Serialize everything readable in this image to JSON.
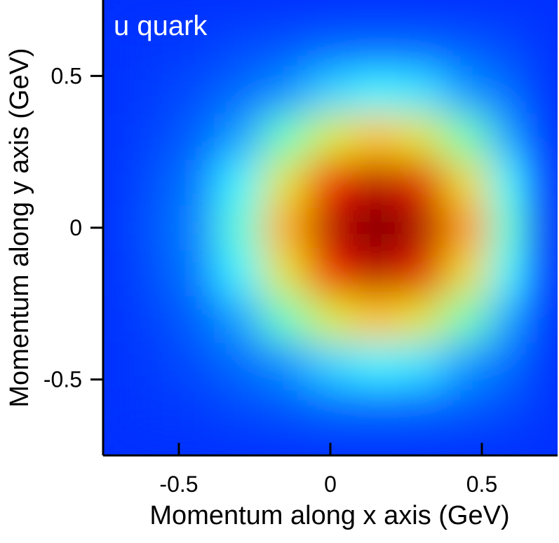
{
  "chart_data": {
    "type": "heatmap",
    "title": "u quark",
    "x_label": "Momentum along x axis (GeV)",
    "y_label": "Momentum along y axis (GeV)",
    "x": [
      -0.6,
      -0.45,
      -0.3,
      -0.15,
      0,
      0.15,
      0.3,
      0.45,
      0.6
    ],
    "y": [
      -0.6,
      -0.45,
      -0.3,
      -0.15,
      0,
      0.15,
      0.3,
      0.45,
      0.6
    ],
    "z": [
      [
        0.01,
        0.02,
        0.05,
        0.08,
        0.12,
        0.13,
        0.12,
        0.09,
        0.05
      ],
      [
        0.02,
        0.06,
        0.12,
        0.2,
        0.28,
        0.32,
        0.3,
        0.21,
        0.12
      ],
      [
        0.04,
        0.1,
        0.22,
        0.38,
        0.53,
        0.61,
        0.55,
        0.39,
        0.22
      ],
      [
        0.06,
        0.15,
        0.32,
        0.55,
        0.77,
        0.88,
        0.8,
        0.57,
        0.32
      ],
      [
        0.07,
        0.17,
        0.36,
        0.63,
        0.88,
        1.0,
        0.91,
        0.65,
        0.36
      ],
      [
        0.06,
        0.15,
        0.32,
        0.55,
        0.77,
        0.88,
        0.8,
        0.57,
        0.32
      ],
      [
        0.04,
        0.1,
        0.22,
        0.38,
        0.53,
        0.61,
        0.55,
        0.39,
        0.22
      ],
      [
        0.02,
        0.06,
        0.12,
        0.2,
        0.28,
        0.32,
        0.3,
        0.21,
        0.12
      ],
      [
        0.01,
        0.02,
        0.05,
        0.08,
        0.12,
        0.13,
        0.12,
        0.09,
        0.05
      ]
    ],
    "zlim": [
      0,
      1
    ],
    "colormap": [
      [
        0,
        "#0030ff"
      ],
      [
        0.2,
        "#0090ff"
      ],
      [
        0.33,
        "#40ffff"
      ],
      [
        0.5,
        "#c8ff30"
      ],
      [
        0.6,
        "#ffd000"
      ],
      [
        0.75,
        "#ff2000"
      ],
      [
        1,
        "#7a0000"
      ]
    ],
    "xlim": [
      -0.75,
      0.75
    ],
    "ylim": [
      -0.75,
      0.75
    ],
    "xticks": [
      -0.5,
      0,
      0.5
    ],
    "yticks": [
      -0.5,
      0,
      0.5
    ]
  }
}
